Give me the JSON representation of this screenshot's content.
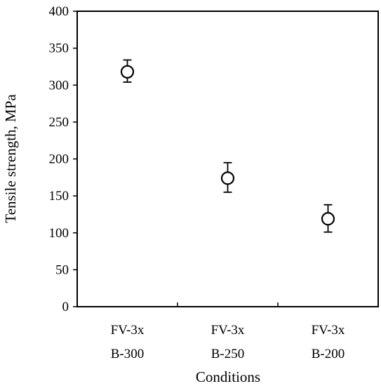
{
  "chart_data": {
    "type": "scatter",
    "title": "",
    "xlabel": "Conditions",
    "ylabel": "Tensile strength, MPa",
    "ylim": [
      0,
      400
    ],
    "yticks": [
      0,
      50,
      100,
      150,
      200,
      250,
      300,
      350,
      400
    ],
    "ytick_labels": [
      "0",
      "50",
      "100",
      "150",
      "200",
      "250",
      "300",
      "350",
      "400"
    ],
    "categories": [
      [
        "FV-3x",
        "B-300"
      ],
      [
        "FV-3x",
        "B-250"
      ],
      [
        "FV-3x",
        "B-200"
      ]
    ],
    "series": [
      {
        "marker": "open-circle",
        "color": "#000000",
        "values": [
          318,
          174,
          119
        ],
        "error_low": [
          304,
          155,
          101
        ],
        "error_high": [
          334,
          195,
          138
        ]
      }
    ],
    "grid": false,
    "legend": "none"
  }
}
